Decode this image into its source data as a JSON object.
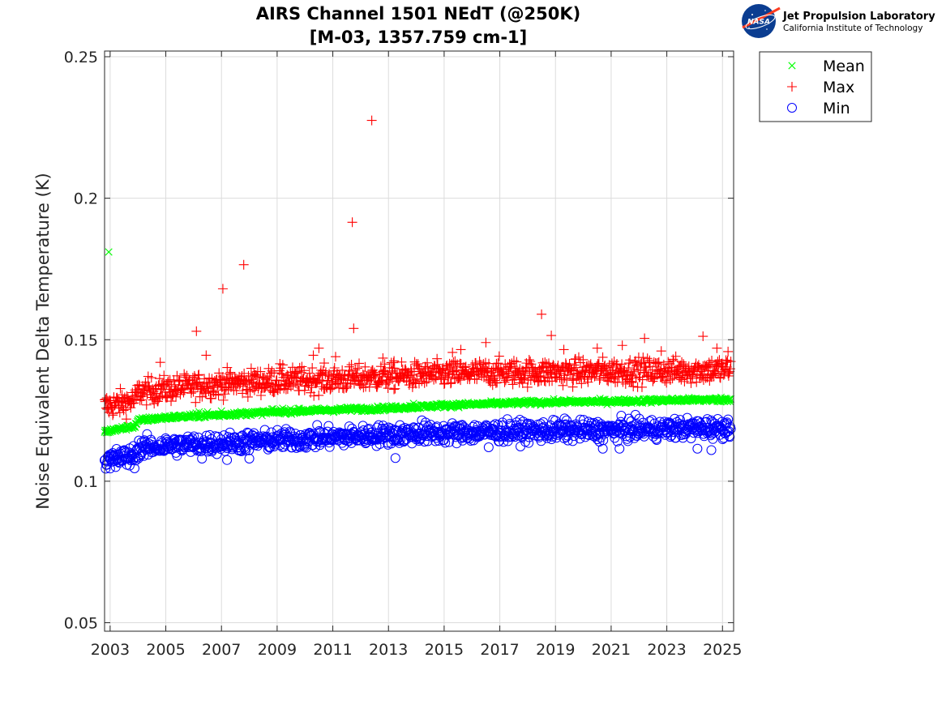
{
  "logo": {
    "nasa_text": "NASA",
    "line1": "Jet Propulsion Laboratory",
    "line2": "California Institute of Technology"
  },
  "chart_data": {
    "type": "scatter",
    "title": "AIRS Channel 1501 NEdT (@250K)",
    "subtitle": "[M-03, 1357.759 cm-1]",
    "xlabel": "",
    "ylabel": "Noise Equivalent Delta Temperature (K)",
    "xlim": [
      2002.8,
      2025.4
    ],
    "ylim": [
      0.047,
      0.252
    ],
    "xticks": [
      2003,
      2005,
      2007,
      2009,
      2011,
      2013,
      2015,
      2017,
      2019,
      2021,
      2023,
      2025
    ],
    "xtick_labels": [
      "2003",
      "2005",
      "2007",
      "2009",
      "2011",
      "2013",
      "2015",
      "2017",
      "2019",
      "2021",
      "2023",
      "2025"
    ],
    "yticks": [
      0.05,
      0.1,
      0.15,
      0.2,
      0.25
    ],
    "ytick_labels": [
      "0.05",
      "0.1",
      "0.15",
      "0.2",
      "0.25"
    ],
    "grid": true,
    "legend_position": "outside-top-right",
    "series": [
      {
        "name": "Mean",
        "marker": "x",
        "color": "#00ff00",
        "trend": [
          [
            2002.8,
            0.1175
          ],
          [
            2003.9,
            0.1195
          ],
          [
            2004.0,
            0.1215
          ],
          [
            2005,
            0.1225
          ],
          [
            2007,
            0.1235
          ],
          [
            2009,
            0.1245
          ],
          [
            2011,
            0.1252
          ],
          [
            2013,
            0.1258
          ],
          [
            2015,
            0.1268
          ],
          [
            2017,
            0.1275
          ],
          [
            2019,
            0.128
          ],
          [
            2021,
            0.1282
          ],
          [
            2023,
            0.1286
          ],
          [
            2025.3,
            0.1289
          ]
        ],
        "spread": 0.0008,
        "outliers": [
          [
            2002.95,
            0.181
          ],
          [
            2006.2,
            0.1245
          ],
          [
            2006.5,
            0.1245
          ],
          [
            2007.0,
            0.1248
          ],
          [
            2008.8,
            0.1255
          ],
          [
            2009.2,
            0.1258
          ],
          [
            2009.8,
            0.1258
          ],
          [
            2013.9,
            0.1275
          ]
        ]
      },
      {
        "name": "Max",
        "marker": "+",
        "color": "#ff0000",
        "trend": [
          [
            2002.8,
            0.1265
          ],
          [
            2003.9,
            0.1285
          ],
          [
            2004.0,
            0.1315
          ],
          [
            2005,
            0.1325
          ],
          [
            2007,
            0.1345
          ],
          [
            2009,
            0.1355
          ],
          [
            2011,
            0.136
          ],
          [
            2013,
            0.137
          ],
          [
            2015,
            0.1378
          ],
          [
            2017,
            0.1385
          ],
          [
            2019,
            0.1385
          ],
          [
            2021,
            0.1388
          ],
          [
            2023,
            0.139
          ],
          [
            2025.3,
            0.1395
          ]
        ],
        "spread": 0.0045,
        "outliers": [
          [
            2004.8,
            0.142
          ],
          [
            2006.1,
            0.153
          ],
          [
            2006.45,
            0.1445
          ],
          [
            2007.05,
            0.168
          ],
          [
            2007.8,
            0.1765
          ],
          [
            2009.1,
            0.1415
          ],
          [
            2010.3,
            0.1445
          ],
          [
            2010.5,
            0.147
          ],
          [
            2011.1,
            0.144
          ],
          [
            2011.7,
            0.1915
          ],
          [
            2011.75,
            0.154
          ],
          [
            2012.4,
            0.2275
          ],
          [
            2012.8,
            0.1435
          ],
          [
            2013.2,
            0.1425
          ],
          [
            2015.3,
            0.1455
          ],
          [
            2015.6,
            0.1465
          ],
          [
            2016.5,
            0.149
          ],
          [
            2018.5,
            0.159
          ],
          [
            2018.85,
            0.1515
          ],
          [
            2019.3,
            0.1465
          ],
          [
            2020.5,
            0.147
          ],
          [
            2021.4,
            0.148
          ],
          [
            2022.2,
            0.1505
          ],
          [
            2022.8,
            0.146
          ],
          [
            2024.3,
            0.1512
          ],
          [
            2024.8,
            0.147
          ],
          [
            2025.2,
            0.1458
          ]
        ]
      },
      {
        "name": "Min",
        "marker": "o",
        "color": "#0000ff",
        "trend": [
          [
            2002.8,
            0.1075
          ],
          [
            2003.9,
            0.109
          ],
          [
            2004.0,
            0.1115
          ],
          [
            2005,
            0.1125
          ],
          [
            2007,
            0.1135
          ],
          [
            2009,
            0.1145
          ],
          [
            2011,
            0.1155
          ],
          [
            2013,
            0.1165
          ],
          [
            2015,
            0.117
          ],
          [
            2017,
            0.1175
          ],
          [
            2019,
            0.1178
          ],
          [
            2021,
            0.118
          ],
          [
            2023,
            0.1185
          ],
          [
            2025.3,
            0.119
          ]
        ],
        "spread": 0.0035,
        "outliers": [
          [
            2003.0,
            0.1045
          ],
          [
            2003.2,
            0.105
          ],
          [
            2003.7,
            0.1055
          ],
          [
            2006.3,
            0.108
          ],
          [
            2007.2,
            0.1075
          ],
          [
            2008.0,
            0.108
          ],
          [
            2013.25,
            0.1082
          ],
          [
            2016.6,
            0.112
          ],
          [
            2020.7,
            0.1115
          ],
          [
            2021.3,
            0.1115
          ],
          [
            2024.1,
            0.1115
          ],
          [
            2024.6,
            0.111
          ],
          [
            2019.4,
            0.1215
          ],
          [
            2014.2,
            0.1215
          ]
        ]
      }
    ]
  }
}
